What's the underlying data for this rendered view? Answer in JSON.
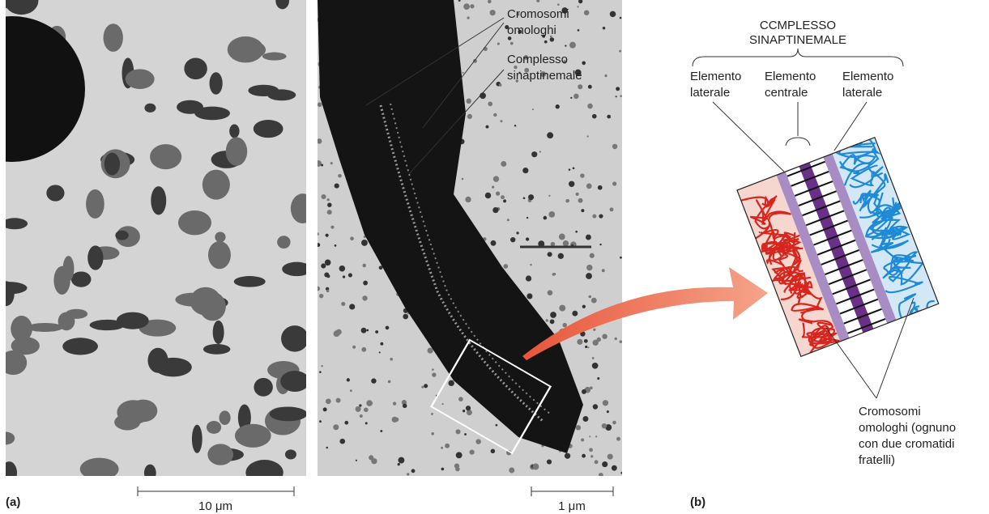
{
  "panel_a": {
    "label": "(a)",
    "scale_bar": "10 μm"
  },
  "micrograph": {
    "homologs": [
      "Cromosomi",
      "omologhi"
    ],
    "complex": [
      "Complesso",
      "sinaptinemale"
    ],
    "scale_bar": "1 μm"
  },
  "panel_b": {
    "label": "(b)",
    "title": [
      "CCMPLESSO",
      "SINAPTINEMALE"
    ],
    "elements": [
      [
        "Elemento",
        "laterale"
      ],
      [
        "Elemento",
        "centrale"
      ],
      [
        "Elemento",
        "laterale"
      ]
    ],
    "homologs_note": [
      "Cromosomi",
      "omologhi (ognuno",
      "con due cromatidi",
      "fratelli)"
    ]
  }
}
